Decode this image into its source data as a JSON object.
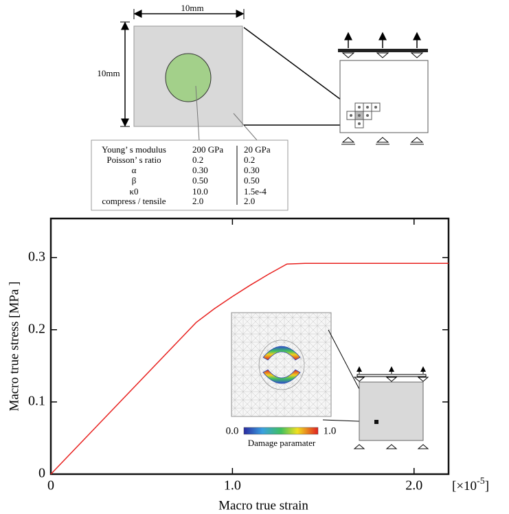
{
  "diagram": {
    "dimensions": {
      "width": "10mm",
      "height": "10mm"
    },
    "table": {
      "rows": [
        [
          "Young’ s modulus",
          "200 GPa",
          "20 GPa"
        ],
        [
          "Poisson’ s ratio",
          "0.2",
          "0.2"
        ],
        [
          "α",
          "0.30",
          "0.30"
        ],
        [
          "β",
          "0.50",
          "0.50"
        ],
        [
          "κ0",
          "10.0",
          "1.5e-4"
        ],
        [
          "compress / tensile",
          "2.0",
          "2.0"
        ]
      ]
    },
    "inset": {
      "colorbar_min": "0.0",
      "colorbar_max": "1.0",
      "colorbar_label": "Damage paramater"
    }
  },
  "chart_data": {
    "type": "line",
    "xlabel": "Macro true strain",
    "ylabel": "Macro true stress  [MPa ]",
    "x_scale_label": [
      "[×10",
      "-5",
      "]"
    ],
    "x": [
      0,
      0.8,
      0.9,
      1.0,
      1.1,
      1.2,
      1.3,
      1.4,
      1.8,
      2.19
    ],
    "values": [
      0,
      0.21,
      0.229,
      0.246,
      0.262,
      0.277,
      0.291,
      0.292,
      0.292,
      0.292
    ],
    "color": "#e8201e",
    "xlim": [
      0,
      2.19
    ],
    "ylim": [
      0,
      0.354
    ],
    "xticks": [
      0,
      {
        "value": 1,
        "label": "1.0"
      },
      {
        "value": 2,
        "label": "2.0"
      }
    ],
    "yticks": [
      0,
      0.1,
      0.2,
      0.3
    ]
  }
}
